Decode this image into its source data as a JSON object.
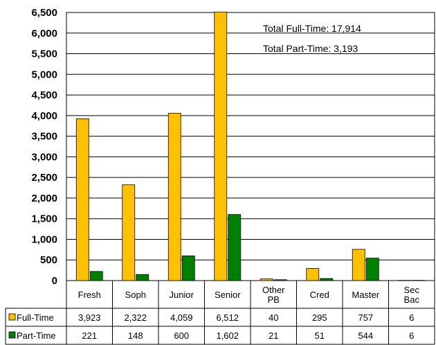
{
  "chart_data": {
    "type": "bar",
    "categories": [
      [
        "Fresh"
      ],
      [
        "Soph"
      ],
      [
        "Junior"
      ],
      [
        "Senior"
      ],
      [
        "Other",
        "PB"
      ],
      [
        "Cred"
      ],
      [
        "Master"
      ],
      [
        "Sec",
        "Bac"
      ]
    ],
    "series": [
      {
        "name": "Full-Time",
        "color": "#FFC000",
        "values": [
          3923,
          2322,
          4059,
          6512,
          40,
          295,
          757,
          6
        ],
        "labels": [
          "3,923",
          "2,322",
          "4,059",
          "6,512",
          "40",
          "295",
          "757",
          "6"
        ]
      },
      {
        "name": "Part-Time",
        "color": "#008000",
        "values": [
          221,
          148,
          600,
          1602,
          21,
          51,
          544,
          6
        ],
        "labels": [
          "221",
          "148",
          "600",
          "1,602",
          "21",
          "51",
          "544",
          "6"
        ]
      }
    ],
    "ylim": [
      0,
      6500
    ],
    "yticks": [
      0,
      500,
      1000,
      1500,
      2000,
      2500,
      3000,
      3500,
      4000,
      4500,
      5000,
      5500,
      6000,
      6500
    ],
    "ytick_labels": [
      "0",
      "500",
      "1,000",
      "1,500",
      "2,000",
      "2,500",
      "3,000",
      "3,500",
      "4,000",
      "4,500",
      "5,000",
      "5,500",
      "6,000",
      "6,500"
    ],
    "annotations": [
      "Total Full-Time: 17,914",
      "Total Part-Time: 3,193"
    ],
    "grid": true,
    "legend": "data-table"
  }
}
